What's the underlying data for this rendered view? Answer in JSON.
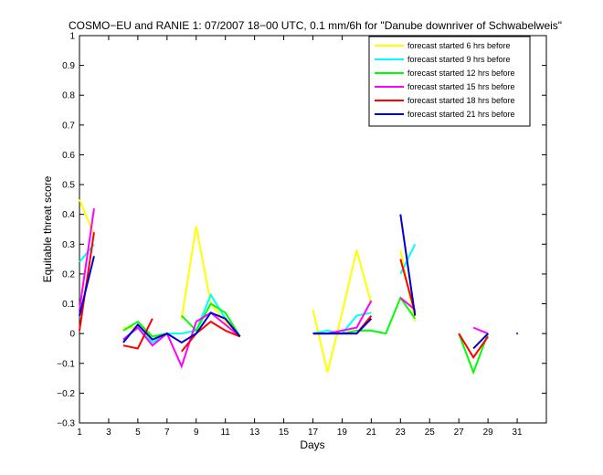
{
  "chart_data": {
    "type": "line",
    "title": "COSMO−EU and RANIE 1: 07/2007 18−00 UTC, 0.1 mm/6h for \"Danube downriver of Schwabelweis\"",
    "xlabel": "Days",
    "ylabel": "Equitable threat score",
    "xlim": [
      1,
      33
    ],
    "ylim": [
      -0.3,
      1
    ],
    "xticks": [
      1,
      3,
      5,
      7,
      9,
      11,
      13,
      15,
      17,
      19,
      21,
      23,
      25,
      27,
      29,
      31
    ],
    "yticks": [
      -0.3,
      -0.2,
      -0.1,
      0,
      0.1,
      0.2,
      0.3,
      0.4,
      0.5,
      0.6,
      0.7,
      0.8,
      0.9,
      1
    ],
    "ytick_labels": [
      "−0.3",
      "−0.2",
      "−0.1",
      "0",
      "0.1",
      "0.2",
      "0.3",
      "0.4",
      "0.5",
      "0.6",
      "0.7",
      "0.8",
      "0.9",
      "1"
    ],
    "legend_position": "top-right",
    "grid": false,
    "series": [
      {
        "name": "forecast started 6 hrs before",
        "color": "#ffff00",
        "segments": [
          [
            [
              1,
              0.45
            ],
            [
              2,
              0.33
            ]
          ],
          [
            [
              4,
              0.02
            ],
            [
              5,
              0.02
            ],
            [
              6,
              -0.01
            ]
          ],
          [
            [
              8,
              0.05
            ],
            [
              9,
              0.36
            ],
            [
              10,
              0.1
            ],
            [
              11,
              0.04
            ],
            [
              12,
              -0.01
            ]
          ],
          [
            [
              17,
              0.08
            ],
            [
              18,
              -0.13
            ],
            [
              19,
              0.07
            ],
            [
              20,
              0.28
            ],
            [
              21,
              0.1
            ]
          ],
          [
            [
              23,
              0.28
            ],
            [
              24,
              0.04
            ]
          ]
        ]
      },
      {
        "name": "forecast started 9 hrs before",
        "color": "#00ffff",
        "segments": [
          [
            [
              1,
              0.24
            ],
            [
              2,
              0.3
            ]
          ],
          [
            [
              4,
              -0.02
            ],
            [
              5,
              0.02
            ],
            [
              6,
              -0.03
            ],
            [
              7,
              0.0
            ],
            [
              8,
              0.0
            ],
            [
              9,
              0.01
            ],
            [
              10,
              0.13
            ],
            [
              11,
              0.05
            ],
            [
              12,
              -0.01
            ]
          ],
          [
            [
              17,
              0.0
            ],
            [
              18,
              0.01
            ],
            [
              19,
              0.0
            ],
            [
              20,
              0.06
            ],
            [
              21,
              0.07
            ]
          ],
          [
            [
              23,
              0.2
            ],
            [
              24,
              0.3
            ]
          ]
        ]
      },
      {
        "name": "forecast started 12 hrs before",
        "color": "#00ff00",
        "segments": [
          [
            [
              4,
              0.01
            ],
            [
              5,
              0.04
            ],
            [
              6,
              -0.01
            ],
            [
              7,
              0.0
            ]
          ],
          [
            [
              8,
              0.06
            ],
            [
              9,
              0.01
            ],
            [
              10,
              0.1
            ],
            [
              11,
              0.07
            ],
            [
              12,
              -0.01
            ]
          ],
          [
            [
              17,
              0.0
            ],
            [
              18,
              0.0
            ],
            [
              19,
              0.0
            ],
            [
              20,
              0.01
            ],
            [
              21,
              0.01
            ],
            [
              22,
              0.0
            ],
            [
              23,
              0.12
            ],
            [
              24,
              0.05
            ]
          ],
          [
            [
              27,
              0.0
            ],
            [
              28,
              -0.13
            ],
            [
              29,
              0.0
            ]
          ]
        ]
      },
      {
        "name": "forecast started 15 hrs before",
        "color": "#ff00ff",
        "segments": [
          [
            [
              1,
              0.08
            ],
            [
              2,
              0.42
            ]
          ],
          [
            [
              4,
              -0.02
            ],
            [
              5,
              0.02
            ],
            [
              6,
              -0.04
            ],
            [
              7,
              0.0
            ],
            [
              8,
              -0.11
            ],
            [
              9,
              0.04
            ],
            [
              10,
              0.07
            ],
            [
              11,
              0.03
            ],
            [
              12,
              -0.01
            ]
          ],
          [
            [
              17,
              0.0
            ],
            [
              18,
              0.0
            ],
            [
              19,
              0.01
            ],
            [
              20,
              0.02
            ],
            [
              21,
              0.11
            ]
          ],
          [
            [
              23,
              0.12
            ],
            [
              24,
              0.08
            ]
          ],
          [
            [
              28,
              0.02
            ],
            [
              29,
              0.0
            ]
          ]
        ]
      },
      {
        "name": "forecast started 18 hrs before",
        "color": "#ff0000",
        "segments": [
          [
            [
              1,
              0.01
            ],
            [
              2,
              0.34
            ]
          ],
          [
            [
              4,
              -0.04
            ],
            [
              5,
              -0.05
            ],
            [
              6,
              0.05
            ]
          ],
          [
            [
              8,
              -0.06
            ],
            [
              9,
              0.0
            ],
            [
              10,
              0.04
            ],
            [
              11,
              0.01
            ],
            [
              12,
              -0.01
            ]
          ],
          [
            [
              17,
              0.0
            ],
            [
              18,
              0.0
            ],
            [
              19,
              0.0
            ],
            [
              20,
              0.0
            ],
            [
              21,
              0.06
            ]
          ],
          [
            [
              23,
              0.25
            ],
            [
              24,
              0.07
            ]
          ],
          [
            [
              27,
              0.0
            ],
            [
              28,
              -0.08
            ],
            [
              29,
              -0.01
            ]
          ]
        ]
      },
      {
        "name": "forecast started 21 hrs before",
        "color": "#0000cc",
        "segments": [
          [
            [
              1,
              0.06
            ],
            [
              2,
              0.26
            ]
          ],
          [
            [
              4,
              -0.03
            ],
            [
              5,
              0.03
            ],
            [
              6,
              -0.02
            ],
            [
              7,
              0.0
            ],
            [
              8,
              -0.03
            ],
            [
              9,
              0.0
            ],
            [
              10,
              0.07
            ],
            [
              11,
              0.05
            ],
            [
              12,
              -0.01
            ]
          ],
          [
            [
              17,
              0.0
            ],
            [
              18,
              0.0
            ],
            [
              19,
              0.0
            ],
            [
              20,
              0.0
            ],
            [
              21,
              0.05
            ]
          ],
          [
            [
              23,
              0.4
            ],
            [
              24,
              0.06
            ]
          ],
          [
            [
              28,
              -0.05
            ],
            [
              29,
              0.0
            ]
          ],
          [
            [
              31,
              0.0
            ]
          ]
        ]
      }
    ]
  }
}
